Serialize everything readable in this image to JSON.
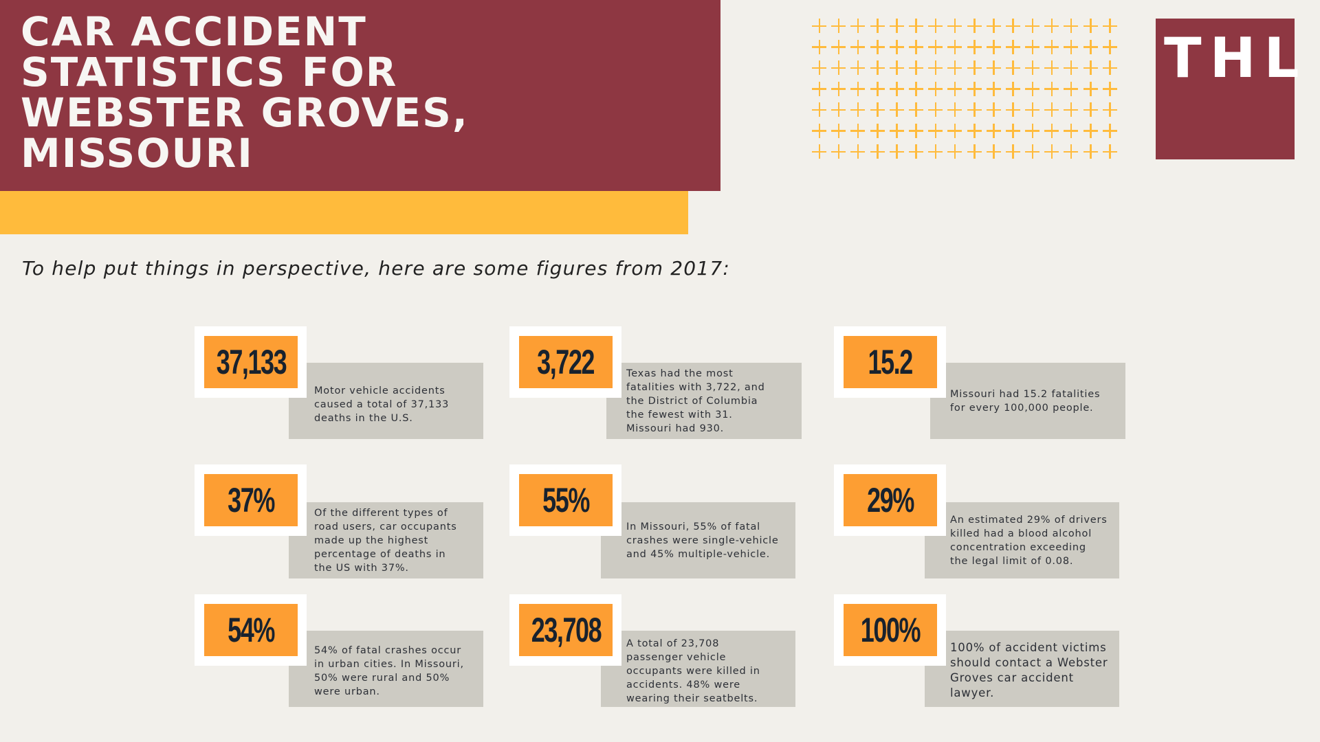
{
  "header": {
    "title_lines": [
      "CAR ACCIDENT",
      "STATISTICS FOR",
      "WEBSTER GROVES,",
      "MISSOURI"
    ],
    "logo_text": "THL"
  },
  "decor": {
    "plus_grid": {
      "columns": 16,
      "rows": 7
    }
  },
  "colors": {
    "maroon": "#8e3742",
    "yellow": "#ffbb3c",
    "orange": "#fd9e33",
    "gray_box": "#cdcbc3",
    "background": "#f2f0eb",
    "number_text": "#18222e"
  },
  "intro": "To help put things in perspective, here are some figures from 2017:",
  "stats": [
    {
      "value": "37,133",
      "text": "Motor vehicle accidents\ncaused a total of 37,133\ndeaths in the U.S."
    },
    {
      "value": "3,722",
      "text": "Texas had the most\nfatalities with 3,722, and\nthe District of Columbia\nthe fewest with 31.\nMissouri had 930."
    },
    {
      "value": "15.2",
      "text": "Missouri had 15.2 fatalities\nfor every 100,000 people."
    },
    {
      "value": "37%",
      "text": "Of the different types of\nroad users, car occupants\nmade up the highest\npercentage of deaths in\nthe US with 37%."
    },
    {
      "value": "55%",
      "text": "In Missouri, 55% of fatal\ncrashes were single-vehicle\nand 45% multiple-vehicle."
    },
    {
      "value": "29%",
      "text": "An estimated 29% of drivers\nkilled had a blood alcohol\nconcentration exceeding\nthe legal limit of 0.08."
    },
    {
      "value": "54%",
      "text": "54% of fatal crashes occur\nin urban cities. In Missouri,\n50% were rural and 50%\nwere urban."
    },
    {
      "value": "23,708",
      "text": "A total of 23,708\npassenger vehicle\noccupants were killed in\naccidents. 48% were\nwearing their seatbelts."
    },
    {
      "value": "100%",
      "text": "100% of accident victims\nshould contact a Webster\nGroves car accident\nlawyer."
    }
  ]
}
